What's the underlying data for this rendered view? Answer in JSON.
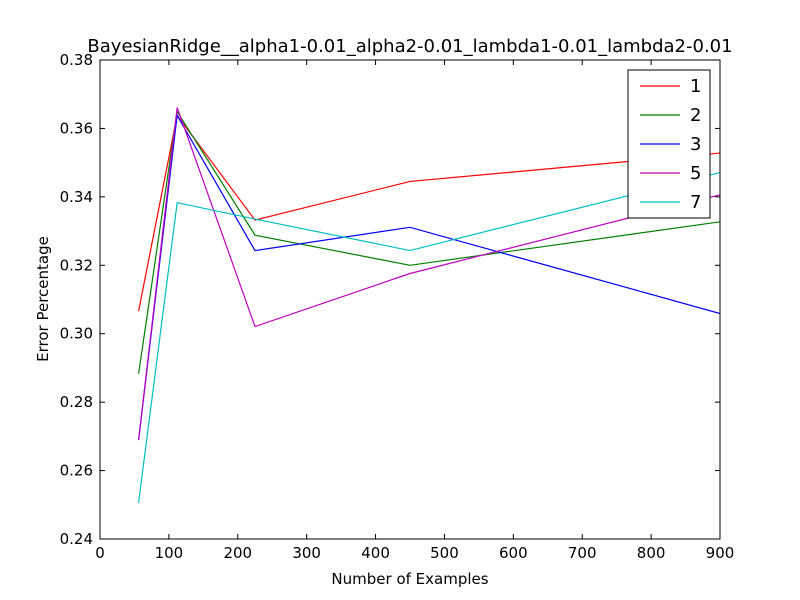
{
  "chart_data": {
    "type": "line",
    "title": "BayesianRidge__alpha1-0.01_alpha2-0.01_lambda1-0.01_lambda2-0.01",
    "xlabel": "Number of Examples",
    "ylabel": "Error Percentage",
    "xlim": [
      0,
      900
    ],
    "ylim": [
      0.24,
      0.38
    ],
    "xticks": [
      0,
      100,
      200,
      300,
      400,
      500,
      600,
      700,
      800,
      900
    ],
    "yticks": [
      0.24,
      0.26,
      0.28,
      0.3,
      0.32,
      0.34,
      0.36,
      0.38
    ],
    "grid": false,
    "legend_position": "top-right",
    "x": [
      56,
      112,
      225,
      450,
      900
    ],
    "series": [
      {
        "name": "1",
        "color": "#ff0000",
        "values": [
          0.3066,
          0.3638,
          0.3332,
          0.3445,
          0.3528
        ]
      },
      {
        "name": "2",
        "color": "#008000",
        "values": [
          0.2883,
          0.3649,
          0.3288,
          0.32,
          0.3327
        ]
      },
      {
        "name": "3",
        "color": "#0000ff",
        "values": [
          0.2689,
          0.3638,
          0.3243,
          0.3311,
          0.3059
        ]
      },
      {
        "name": "5",
        "color": "#bf00bf",
        "values": [
          0.2689,
          0.3661,
          0.3021,
          0.3176,
          0.3406
        ]
      },
      {
        "name": "7",
        "color": "#00bfbf",
        "values": [
          0.2506,
          0.3383,
          0.3335,
          0.3243,
          0.3471
        ]
      }
    ]
  }
}
